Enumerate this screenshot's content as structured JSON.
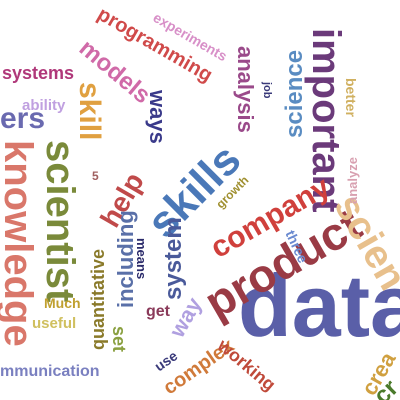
{
  "words": [
    {
      "id": "data",
      "text": "data",
      "color": "#5a5fa8"
    },
    {
      "id": "product",
      "text": "product",
      "color": "#9a3b45"
    },
    {
      "id": "skills",
      "text": "skills",
      "color": "#4a78b8"
    },
    {
      "id": "knowledge",
      "text": "knowledge",
      "color": "#d9776a"
    },
    {
      "id": "scientist",
      "text": "scientist",
      "color": "#7a8a3a"
    },
    {
      "id": "important",
      "text": "important",
      "color": "#6b3a7a"
    },
    {
      "id": "company",
      "text": "company",
      "color": "#d0403c"
    },
    {
      "id": "scientists_partial",
      "text": "scien",
      "color": "#e8c08c"
    },
    {
      "id": "science",
      "text": "science",
      "color": "#5a8cc2"
    },
    {
      "id": "analysis",
      "text": "analysis",
      "color": "#9a4a8a"
    },
    {
      "id": "models",
      "text": "models",
      "color": "#d06aa8"
    },
    {
      "id": "programming",
      "text": "programming",
      "color": "#d04a4a"
    },
    {
      "id": "experiments",
      "text": "experiments",
      "color": "#d890c8"
    },
    {
      "id": "systems",
      "text": "systems",
      "color": "#b0387a"
    },
    {
      "id": "ability",
      "text": "ability",
      "color": "#c0a0e0"
    },
    {
      "id": "skill",
      "text": "skill",
      "color": "#e0a040"
    },
    {
      "id": "help",
      "text": "help",
      "color": "#c04a4a"
    },
    {
      "id": "ways",
      "text": "ways",
      "color": "#3a3a8a"
    },
    {
      "id": "including",
      "text": "including",
      "color": "#5a70a8"
    },
    {
      "id": "quantitative",
      "text": "quantitative",
      "color": "#8a7a2a"
    },
    {
      "id": "system",
      "text": "system",
      "color": "#4a5a9a"
    },
    {
      "id": "way",
      "text": "way",
      "color": "#b0a0e0"
    },
    {
      "id": "means",
      "text": "means",
      "color": "#2a2a6a"
    },
    {
      "id": "get",
      "text": "get",
      "color": "#8a3a5a"
    },
    {
      "id": "set",
      "text": "set",
      "color": "#8aa040"
    },
    {
      "id": "use",
      "text": "use",
      "color": "#3a3a7a"
    },
    {
      "id": "complex",
      "text": "complex",
      "color": "#d07a3a"
    },
    {
      "id": "working",
      "text": "working",
      "color": "#c04a3a"
    },
    {
      "id": "useful",
      "text": "useful",
      "color": "#d0c060"
    },
    {
      "id": "much",
      "text": "Much",
      "color": "#c0a030"
    },
    {
      "id": "communication",
      "text": "mmunication",
      "color": "#7a80c0"
    },
    {
      "id": "creative",
      "text": "crea",
      "color": "#d0a040"
    },
    {
      "id": "better",
      "text": "better",
      "color": "#d0b060"
    },
    {
      "id": "analyze",
      "text": "analyze",
      "color": "#d8a0b0"
    },
    {
      "id": "three",
      "text": "three",
      "color": "#6a8ad0"
    },
    {
      "id": "growth",
      "text": "growth",
      "color": "#a09030"
    },
    {
      "id": "job",
      "text": "job",
      "color": "#3a3a7a"
    },
    {
      "id": "five",
      "text": "5",
      "color": "#a06060"
    },
    {
      "id": "ers",
      "text": "ers",
      "color": "#6a6ab0"
    },
    {
      "id": "green_partial",
      "text": "cr",
      "color": "#4a7a2a"
    }
  ]
}
